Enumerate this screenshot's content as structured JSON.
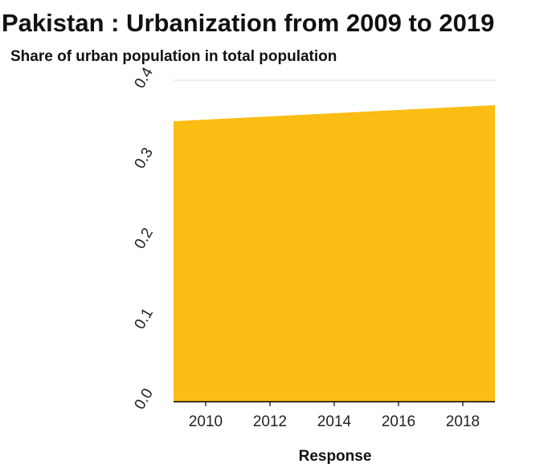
{
  "chart_data": {
    "type": "area",
    "title": "Pakistan : Urbanization from 2009 to 2019",
    "subtitle": "Share of urban population in total population",
    "xlabel": "Response",
    "ylabel": "",
    "x": [
      2009,
      2010,
      2011,
      2012,
      2013,
      2014,
      2015,
      2016,
      2017,
      2018,
      2019
    ],
    "series": [
      {
        "values": [
          0.349,
          0.351,
          0.353,
          0.355,
          0.357,
          0.359,
          0.361,
          0.363,
          0.365,
          0.367,
          0.369
        ]
      }
    ],
    "xlim": [
      2009,
      2019
    ],
    "ylim": [
      0.0,
      0.4
    ],
    "x_ticks": [
      "2010",
      "2012",
      "2014",
      "2016",
      "2018"
    ],
    "y_ticks": [
      "0.0",
      "0.1",
      "0.2",
      "0.3",
      "0.4"
    ],
    "grid": "horizontal",
    "legend": "none",
    "colors": {
      "area": "#fbbd13",
      "grid": "#d9d9d9",
      "axis": "#000000"
    }
  }
}
